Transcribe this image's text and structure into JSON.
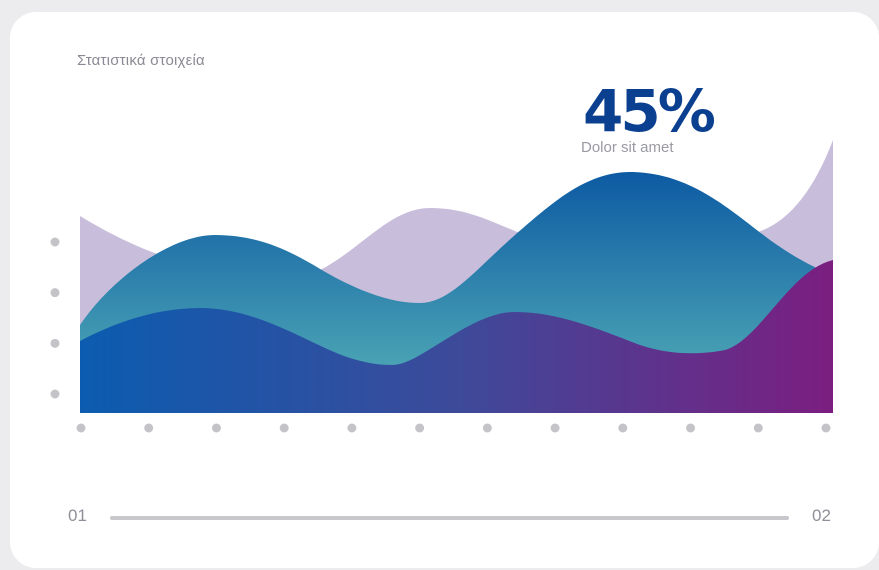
{
  "header": {
    "title": "Στατιστικά στοιχεία"
  },
  "highlight": {
    "value": "45%",
    "caption": "Dolor sit amet"
  },
  "range": {
    "start": "01",
    "end": "02"
  },
  "colors": {
    "background": "#ececee",
    "card": "#ffffff",
    "accent": "#0b3f8f",
    "series_1_fill": "#c5b8da",
    "series_2_fill_top": "#0d5aa3",
    "series_2_fill_bottom": "#58b4b8",
    "series_3_fill_left": "#0b5cb0",
    "series_3_fill_right": "#7b1e80",
    "axis_dot": "#c4c4c8"
  },
  "chart_data": {
    "type": "area",
    "x_ticks": 12,
    "y_ticks": 4,
    "x": [
      0,
      1,
      2,
      3,
      4,
      5,
      6,
      7,
      8,
      9,
      10,
      11
    ],
    "series": [
      {
        "values": [
          0.58,
          0.45,
          0.42,
          0.48,
          0.58,
          0.69,
          0.62,
          0.6,
          0.62,
          0.58,
          0.67,
          0.9
        ]
      },
      {
        "values": [
          0.27,
          0.52,
          0.58,
          0.49,
          0.38,
          0.36,
          0.53,
          0.75,
          0.76,
          0.56,
          0.37,
          0.3
        ]
      },
      {
        "values": [
          0.23,
          0.3,
          0.34,
          0.27,
          0.16,
          0.13,
          0.25,
          0.34,
          0.22,
          0.18,
          0.3,
          0.55
        ]
      }
    ],
    "ylim": [
      0,
      1
    ]
  }
}
